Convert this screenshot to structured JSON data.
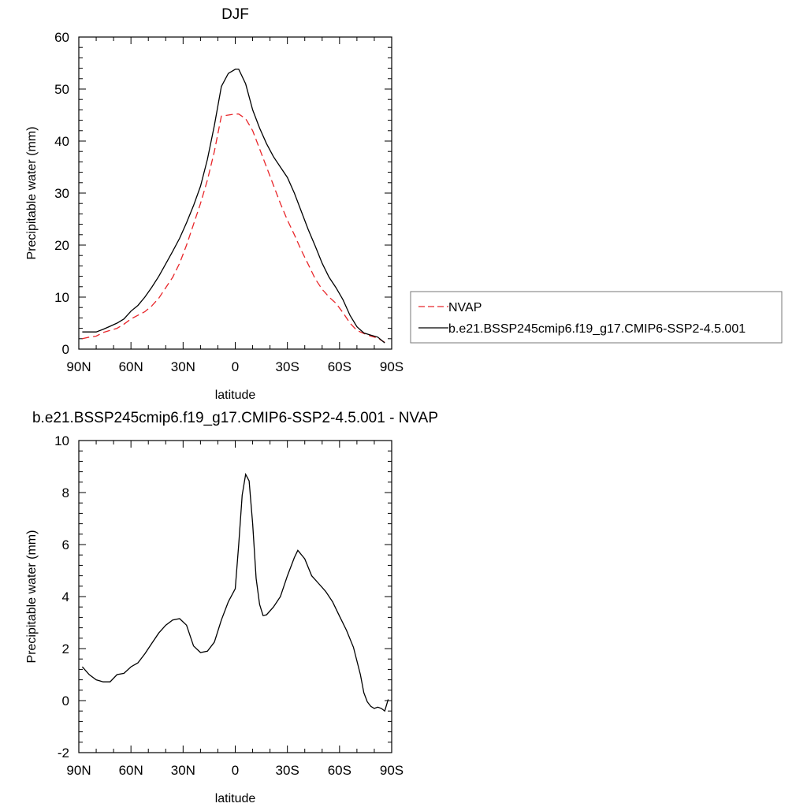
{
  "colors": {
    "nvap": "#e8262a",
    "model": "#000000",
    "axis": "#000000",
    "legend_border": "#777777"
  },
  "chart_data": [
    {
      "type": "line",
      "title": "DJF",
      "xlabel": "latitude",
      "ylabel": "Precipitable water (mm)",
      "xlim": [
        90,
        -90
      ],
      "ylim": [
        0,
        60
      ],
      "x_ticks": [
        90,
        60,
        30,
        0,
        -30,
        -60,
        -90
      ],
      "x_tick_labels": [
        "90N",
        "60N",
        "30N",
        "0",
        "30S",
        "60S",
        "90S"
      ],
      "y_ticks": [
        0,
        10,
        20,
        30,
        40,
        50,
        60
      ],
      "y_tick_labels": [
        "0",
        "10",
        "20",
        "30",
        "40",
        "50",
        "60"
      ],
      "legend": {
        "placement": "right",
        "entries": [
          "NVAP",
          "b.e21.BSSP245cmip6.f19_g17.CMIP6-SSP2-4.5.001"
        ]
      },
      "series": [
        {
          "name": "NVAP",
          "style": "dashed",
          "points": [
            [
              88,
              2.0
            ],
            [
              84,
              2.3
            ],
            [
              80,
              2.5
            ],
            [
              76,
              3.2
            ],
            [
              72,
              3.6
            ],
            [
              68,
              4.0
            ],
            [
              64,
              4.8
            ],
            [
              60,
              5.8
            ],
            [
              56,
              6.5
            ],
            [
              52,
              7.2
            ],
            [
              48,
              8.3
            ],
            [
              44,
              9.8
            ],
            [
              40,
              11.8
            ],
            [
              36,
              13.8
            ],
            [
              32,
              16.5
            ],
            [
              28,
              20.0
            ],
            [
              24,
              24.0
            ],
            [
              20,
              28.0
            ],
            [
              16,
              32.5
            ],
            [
              12,
              38.0
            ],
            [
              8,
              44.8
            ],
            [
              4,
              45.0
            ],
            [
              0,
              45.2
            ],
            [
              -2,
              45.2
            ],
            [
              -6,
              44.3
            ],
            [
              -10,
              42.0
            ],
            [
              -14,
              38.5
            ],
            [
              -18,
              35.0
            ],
            [
              -22,
              31.5
            ],
            [
              -26,
              28.0
            ],
            [
              -30,
              24.8
            ],
            [
              -34,
              22.0
            ],
            [
              -38,
              19.0
            ],
            [
              -42,
              16.3
            ],
            [
              -46,
              13.5
            ],
            [
              -50,
              11.5
            ],
            [
              -54,
              10.0
            ],
            [
              -58,
              8.8
            ],
            [
              -62,
              7.0
            ],
            [
              -66,
              5.0
            ],
            [
              -70,
              3.6
            ],
            [
              -74,
              3.0
            ],
            [
              -78,
              2.5
            ],
            [
              -82,
              2.1
            ],
            [
              -86,
              1.3
            ]
          ]
        },
        {
          "name": "b.e21.BSSP245cmip6.f19_g17.CMIP6-SSP2-4.5.001",
          "style": "solid",
          "points": [
            [
              88,
              3.3
            ],
            [
              84,
              3.3
            ],
            [
              80,
              3.3
            ],
            [
              76,
              3.8
            ],
            [
              72,
              4.4
            ],
            [
              68,
              5.0
            ],
            [
              64,
              5.8
            ],
            [
              60,
              7.3
            ],
            [
              56,
              8.4
            ],
            [
              52,
              10.0
            ],
            [
              48,
              11.9
            ],
            [
              44,
              14.0
            ],
            [
              40,
              16.4
            ],
            [
              36,
              18.8
            ],
            [
              32,
              21.3
            ],
            [
              28,
              24.3
            ],
            [
              24,
              27.6
            ],
            [
              20,
              31.3
            ],
            [
              16,
              36.5
            ],
            [
              12,
              43.0
            ],
            [
              8,
              50.5
            ],
            [
              4,
              53.0
            ],
            [
              0,
              53.8
            ],
            [
              -2,
              53.8
            ],
            [
              -6,
              51.0
            ],
            [
              -10,
              46.0
            ],
            [
              -14,
              42.5
            ],
            [
              -18,
              39.5
            ],
            [
              -22,
              37.0
            ],
            [
              -26,
              35.0
            ],
            [
              -30,
              33.0
            ],
            [
              -34,
              30.0
            ],
            [
              -38,
              26.5
            ],
            [
              -42,
              23.0
            ],
            [
              -46,
              19.8
            ],
            [
              -50,
              16.5
            ],
            [
              -54,
              13.8
            ],
            [
              -58,
              11.8
            ],
            [
              -62,
              9.5
            ],
            [
              -66,
              6.5
            ],
            [
              -70,
              4.3
            ],
            [
              -74,
              3.1
            ],
            [
              -78,
              2.7
            ],
            [
              -82,
              2.3
            ],
            [
              -86,
              1.2
            ]
          ]
        }
      ]
    },
    {
      "type": "line",
      "title": "b.e21.BSSP245cmip6.f19_g17.CMIP6-SSP2-4.5.001 - NVAP",
      "xlabel": "latitude",
      "ylabel": "Precipitable water (mm)",
      "xlim": [
        90,
        -90
      ],
      "ylim": [
        -2,
        10
      ],
      "x_ticks": [
        90,
        60,
        30,
        0,
        -30,
        -60,
        -90
      ],
      "x_tick_labels": [
        "90N",
        "60N",
        "30N",
        "0",
        "30S",
        "60S",
        "90S"
      ],
      "y_ticks": [
        -2,
        0,
        2,
        4,
        6,
        8,
        10
      ],
      "y_tick_labels": [
        "-2",
        "0",
        "2",
        "4",
        "6",
        "8",
        "10"
      ],
      "series": [
        {
          "style": "solid",
          "points": [
            [
              88,
              1.3
            ],
            [
              84,
              1.0
            ],
            [
              80,
              0.8
            ],
            [
              76,
              0.72
            ],
            [
              72,
              0.72
            ],
            [
              68,
              1.0
            ],
            [
              64,
              1.05
            ],
            [
              60,
              1.3
            ],
            [
              56,
              1.45
            ],
            [
              52,
              1.8
            ],
            [
              48,
              2.2
            ],
            [
              44,
              2.6
            ],
            [
              40,
              2.9
            ],
            [
              36,
              3.1
            ],
            [
              32,
              3.15
            ],
            [
              28,
              2.9
            ],
            [
              24,
              2.1
            ],
            [
              20,
              1.85
            ],
            [
              16,
              1.9
            ],
            [
              12,
              2.25
            ],
            [
              8,
              3.1
            ],
            [
              4,
              3.8
            ],
            [
              0,
              4.3
            ],
            [
              -2,
              6.0
            ],
            [
              -4,
              7.9
            ],
            [
              -6,
              8.7
            ],
            [
              -8,
              8.45
            ],
            [
              -10,
              6.8
            ],
            [
              -12,
              4.7
            ],
            [
              -14,
              3.7
            ],
            [
              -16,
              3.27
            ],
            [
              -18,
              3.3
            ],
            [
              -22,
              3.6
            ],
            [
              -26,
              4.0
            ],
            [
              -30,
              4.8
            ],
            [
              -34,
              5.5
            ],
            [
              -36,
              5.78
            ],
            [
              -40,
              5.45
            ],
            [
              -44,
              4.8
            ],
            [
              -48,
              4.5
            ],
            [
              -52,
              4.2
            ],
            [
              -56,
              3.8
            ],
            [
              -60,
              3.25
            ],
            [
              -64,
              2.7
            ],
            [
              -68,
              2.05
            ],
            [
              -72,
              1.0
            ],
            [
              -74,
              0.3
            ],
            [
              -76,
              -0.05
            ],
            [
              -78,
              -0.22
            ],
            [
              -80,
              -0.3
            ],
            [
              -82,
              -0.25
            ],
            [
              -84,
              -0.3
            ],
            [
              -86,
              -0.4
            ],
            [
              -88,
              0.05
            ]
          ]
        }
      ]
    }
  ]
}
